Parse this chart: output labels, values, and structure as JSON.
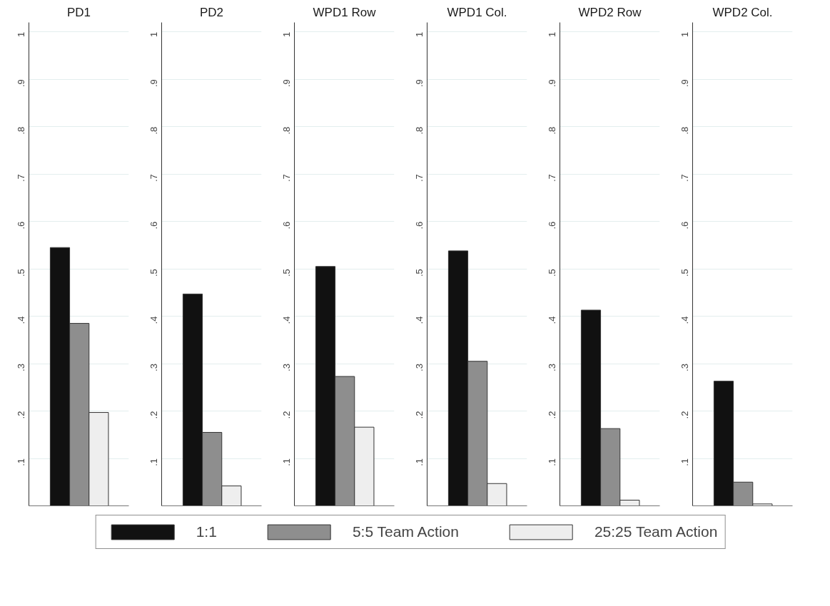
{
  "chart_data": [
    {
      "type": "bar",
      "title": "PD1",
      "categories": [
        null
      ],
      "series": [
        {
          "name": "1:1",
          "color": "#111111",
          "values": [
            0.545
          ]
        },
        {
          "name": "5:5 Team Action",
          "color": "#8e8e8e",
          "values": [
            0.385
          ]
        },
        {
          "name": "25:25 Team Action",
          "color": "#eeeeee",
          "values": [
            0.197
          ]
        }
      ],
      "ylim": [
        0,
        1.02
      ],
      "yticks": [
        {
          "value": 0.1,
          "label": ".1"
        },
        {
          "value": 0.2,
          "label": ".2"
        },
        {
          "value": 0.3,
          "label": ".3"
        },
        {
          "value": 0.4,
          "label": ".4"
        },
        {
          "value": 0.5,
          "label": ".5"
        },
        {
          "value": 0.6,
          "label": ".6"
        },
        {
          "value": 0.7,
          "label": ".7"
        },
        {
          "value": 0.8,
          "label": ".8"
        },
        {
          "value": 0.9,
          "label": ".9"
        },
        1
      ],
      "grid": "y",
      "tick_labels": "y",
      "legend": "bottom"
    },
    {
      "type": "bar",
      "title": "PD2",
      "categories": [
        null
      ],
      "series": [
        {
          "color": "#111111",
          "values": [
            0.447
          ]
        },
        {
          "color": "#8e8e8e",
          "values": [
            0.155
          ]
        },
        {
          "color": "#eeeeee",
          "values": [
            0.042
          ]
        }
      ],
      "ylim": [
        0,
        1.02
      ],
      "yticks": [
        {
          "value": 0.1,
          "label": ".1"
        },
        {
          "value": 0.2,
          "label": ".2"
        },
        {
          "value": 0.3,
          "label": ".3"
        },
        {
          "value": 0.4,
          "label": ".4"
        },
        {
          "value": 0.5,
          "label": ".5"
        },
        {
          "value": 0.6,
          "label": ".6"
        },
        {
          "value": 0.7,
          "label": ".7"
        },
        {
          "value": 0.8,
          "label": ".8"
        },
        {
          "value": 0.9,
          "label": ".9"
        },
        1
      ],
      "grid": "y",
      "tick_labels": "y"
    },
    {
      "type": "bar",
      "title": "WPD1 Row",
      "categories": [
        null
      ],
      "series": [
        {
          "color": "#111111",
          "values": [
            0.505
          ]
        },
        {
          "color": "#8e8e8e",
          "values": [
            0.273
          ]
        },
        {
          "color": "#eeeeee",
          "values": [
            0.166
          ]
        }
      ],
      "ylim": [
        0,
        1.02
      ],
      "yticks": [
        {
          "value": 0.1,
          "label": ".1"
        },
        {
          "value": 0.2,
          "label": ".2"
        },
        {
          "value": 0.3,
          "label": ".3"
        },
        {
          "value": 0.4,
          "label": ".4"
        },
        {
          "value": 0.5,
          "label": ".5"
        },
        {
          "value": 0.6,
          "label": ".6"
        },
        {
          "value": 0.7,
          "label": ".7"
        },
        {
          "value": 0.8,
          "label": ".8"
        },
        {
          "value": 0.9,
          "label": ".9"
        },
        1
      ],
      "grid": "y",
      "tick_labels": "y"
    },
    {
      "type": "bar",
      "title": "WPD1 Col.",
      "categories": [
        null
      ],
      "series": [
        {
          "color": "#111111",
          "values": [
            0.538
          ]
        },
        {
          "color": "#8e8e8e",
          "values": [
            0.305
          ]
        },
        {
          "color": "#eeeeee",
          "values": [
            0.047
          ]
        }
      ],
      "ylim": [
        0,
        1.02
      ],
      "yticks": [
        {
          "value": 0.1,
          "label": ".1"
        },
        {
          "value": 0.2,
          "label": ".2"
        },
        {
          "value": 0.3,
          "label": ".3"
        },
        {
          "value": 0.4,
          "label": ".4"
        },
        {
          "value": 0.5,
          "label": ".5"
        },
        {
          "value": 0.6,
          "label": ".6"
        },
        {
          "value": 0.7,
          "label": ".7"
        },
        {
          "value": 0.8,
          "label": ".8"
        },
        {
          "value": 0.9,
          "label": ".9"
        },
        1
      ],
      "grid": "y",
      "tick_labels": "y"
    },
    {
      "type": "bar",
      "title": "WPD2 Row",
      "categories": [
        null
      ],
      "series": [
        {
          "color": "#111111",
          "values": [
            0.413
          ]
        },
        {
          "color": "#8e8e8e",
          "values": [
            0.163
          ]
        },
        {
          "color": "#eeeeee",
          "values": [
            0.012
          ]
        }
      ],
      "ylim": [
        0,
        1.02
      ],
      "yticks": [
        {
          "value": 0.1,
          "label": ".1"
        },
        {
          "value": 0.2,
          "label": ".2"
        },
        {
          "value": 0.3,
          "label": ".3"
        },
        {
          "value": 0.4,
          "label": ".4"
        },
        {
          "value": 0.5,
          "label": ".5"
        },
        {
          "value": 0.6,
          "label": ".6"
        },
        {
          "value": 0.7,
          "label": ".7"
        },
        {
          "value": 0.8,
          "label": ".8"
        },
        {
          "value": 0.9,
          "label": ".9"
        },
        1
      ],
      "grid": "y",
      "tick_labels": "y"
    },
    {
      "type": "bar",
      "title": "WPD2 Col.",
      "categories": [
        null
      ],
      "series": [
        {
          "color": "#111111",
          "values": [
            0.263
          ]
        },
        {
          "color": "#8e8e8e",
          "values": [
            0.05
          ]
        },
        {
          "color": "#eeeeee",
          "values": [
            0.004
          ]
        }
      ],
      "ylim": [
        0,
        1.02
      ],
      "yticks": [
        {
          "value": 0.1,
          "label": ".1"
        },
        {
          "value": 0.2,
          "label": ".2"
        },
        {
          "value": 0.3,
          "label": ".3"
        },
        {
          "value": 0.4,
          "label": ".4"
        },
        {
          "value": 0.5,
          "label": ".5"
        },
        {
          "value": 0.6,
          "label": ".6"
        },
        {
          "value": 0.7,
          "label": ".7"
        },
        {
          "value": 0.8,
          "label": ".8"
        },
        {
          "value": 0.9,
          "label": ".9"
        },
        1
      ],
      "grid": "y",
      "tick_labels": "y"
    }
  ]
}
